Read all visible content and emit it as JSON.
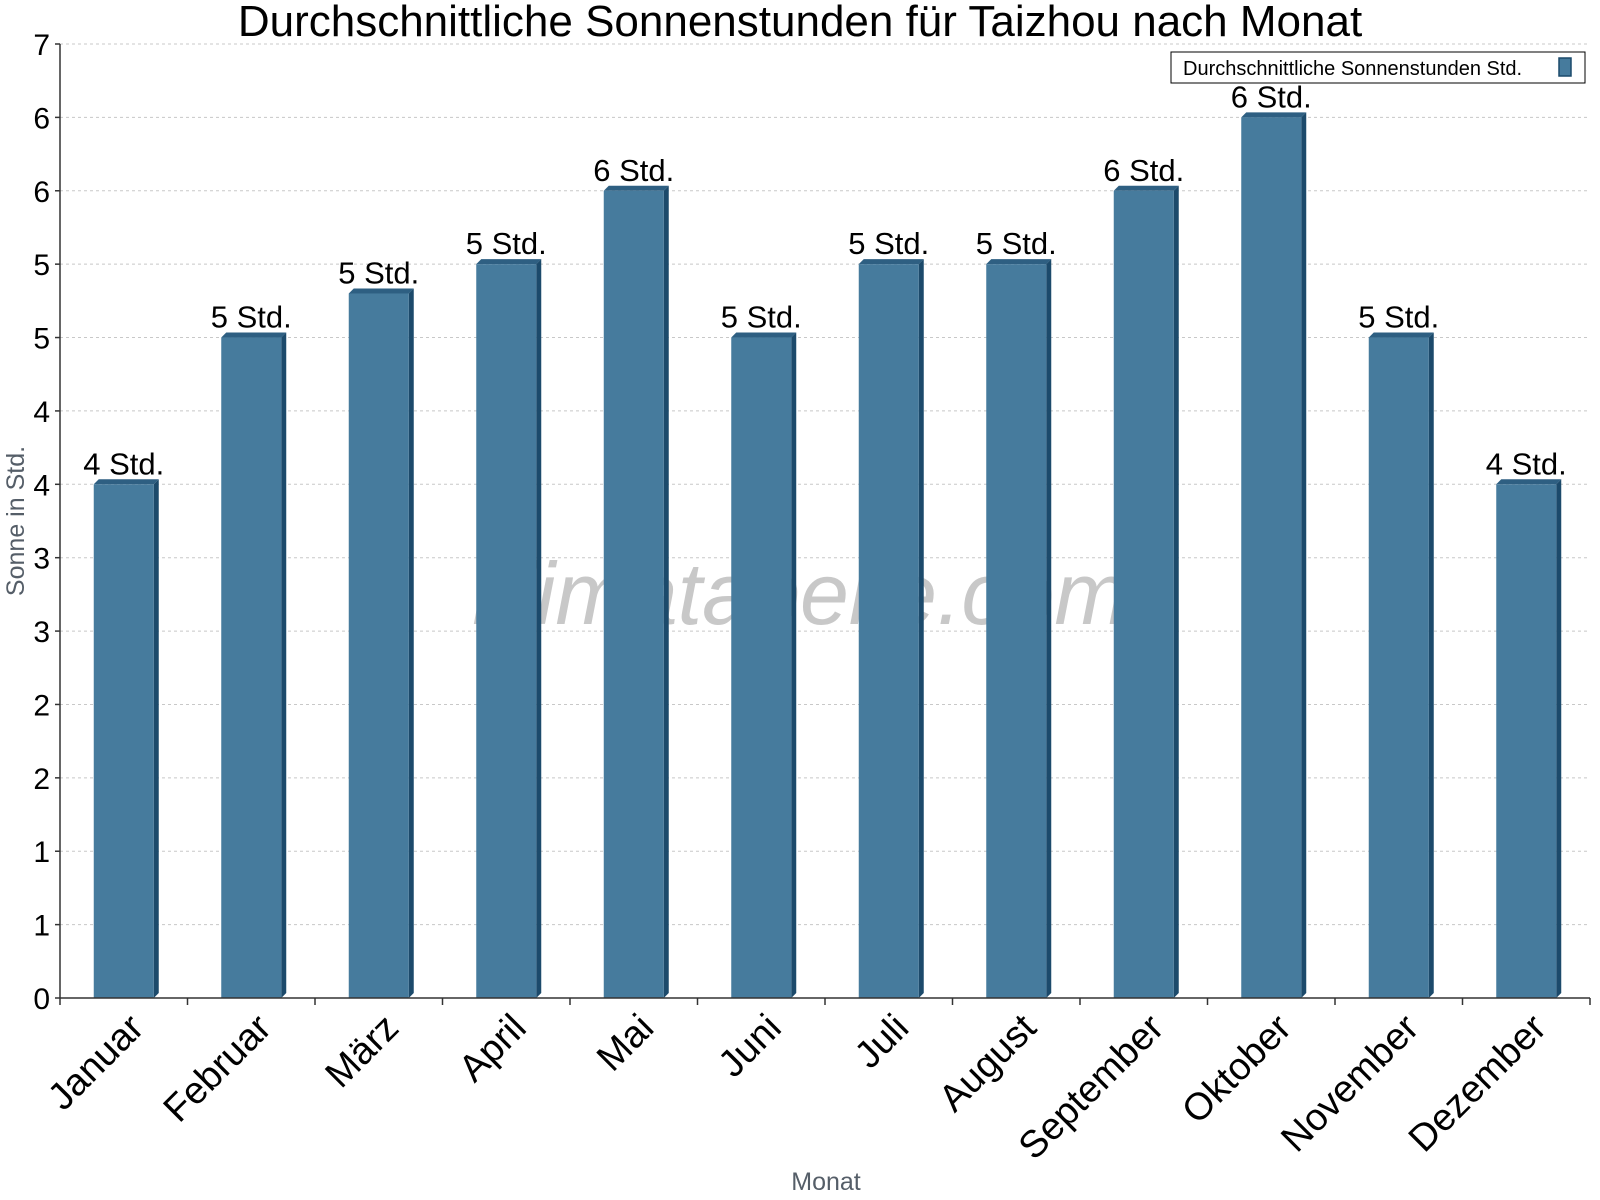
{
  "colors": {
    "bar": "#467b9d",
    "bar_side": "#1c4a6b",
    "bar_top": "#2e5f82"
  },
  "chart_data": {
    "type": "bar",
    "title": "Durchschnittliche Sonnenstunden für Taizhou nach Monat",
    "xlabel": "Monat",
    "ylabel": "Sonne in Std.",
    "ylim": [
      0,
      6.5
    ],
    "y_tick_labels": [
      "0",
      "1",
      "1",
      "2",
      "2",
      "3",
      "3",
      "4",
      "4",
      "5",
      "5",
      "6",
      "6",
      "7"
    ],
    "grid": true,
    "legend_position": "top-right",
    "categories": [
      "Januar",
      "Februar",
      "März",
      "April",
      "Mai",
      "Juni",
      "Juli",
      "August",
      "September",
      "Oktober",
      "November",
      "Dezember"
    ],
    "series": [
      {
        "name": "Durchschnittliche Sonnenstunden Std.",
        "values": [
          3.5,
          4.5,
          4.8,
          5.0,
          5.5,
          4.5,
          5.0,
          5.0,
          5.5,
          6.0,
          4.5,
          3.5
        ],
        "labels": [
          "4 Std.",
          "5 Std.",
          "5 Std.",
          "5 Std.",
          "6 Std.",
          "5 Std.",
          "5 Std.",
          "5 Std.",
          "6 Std.",
          "6 Std.",
          "5 Std.",
          "4 Std."
        ]
      }
    ],
    "watermark": "klimatabelle.com"
  }
}
